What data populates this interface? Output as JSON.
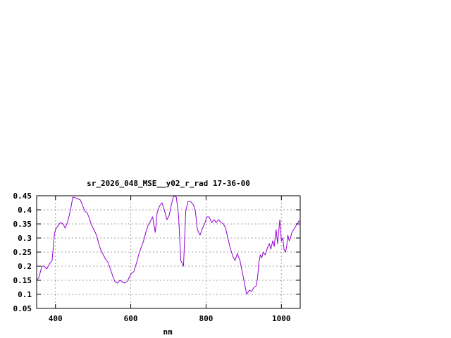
{
  "chart_data": {
    "type": "line",
    "title": "sr_2026_048_MSE__y02_r_rad 17-36-00",
    "xlabel": "nm",
    "ylabel": "",
    "xlim": [
      350,
      1050
    ],
    "ylim": [
      0.05,
      0.45
    ],
    "x_ticks": [
      400,
      600,
      800,
      1000
    ],
    "x_tick_labels": [
      "400",
      "600",
      "800",
      "1000"
    ],
    "y_ticks": [
      0.05,
      0.1,
      0.15,
      0.2,
      0.25,
      0.3,
      0.35,
      0.4,
      0.45
    ],
    "y_tick_labels": [
      "0.05",
      "0.1",
      "0.15",
      "0.2",
      "0.25",
      "0.3",
      "0.35",
      "0.4",
      "0.45"
    ],
    "grid": true,
    "line_color": "#9400d3",
    "series": [
      {
        "x": [
          350,
          356,
          364,
          370,
          377,
          385,
          391,
          397,
          400,
          405,
          413,
          420,
          426,
          433,
          440,
          446,
          452,
          459,
          466,
          471,
          478,
          484,
          490,
          496,
          502,
          509,
          515,
          521,
          527,
          533,
          539,
          546,
          552,
          558,
          565,
          571,
          577,
          584,
          590,
          596,
          602,
          608,
          615,
          621,
          627,
          633,
          640,
          646,
          652,
          658,
          665,
          670,
          677,
          683,
          689,
          696,
          702,
          708,
          714,
          721,
          727,
          733,
          740,
          746,
          752,
          758,
          762,
          765,
          767,
          769,
          772,
          777,
          784,
          789,
          796,
          802,
          808,
          815,
          821,
          827,
          833,
          840,
          846,
          852,
          858,
          864,
          871,
          877,
          883,
          890,
          896,
          902,
          908,
          915,
          921,
          927,
          933,
          937,
          940,
          944,
          948,
          952,
          957,
          963,
          968,
          972,
          977,
          981,
          986,
          990,
          996,
          1000,
          1004,
          1007,
          1011,
          1014,
          1017,
          1021,
          1024,
          1028,
          1033,
          1037,
          1042,
          1046,
          1050
        ],
        "y": [
          0.15,
          0.16,
          0.2,
          0.2,
          0.19,
          0.21,
          0.22,
          0.31,
          0.33,
          0.34,
          0.355,
          0.35,
          0.335,
          0.36,
          0.4,
          0.445,
          0.443,
          0.44,
          0.435,
          0.42,
          0.395,
          0.39,
          0.37,
          0.345,
          0.33,
          0.31,
          0.28,
          0.255,
          0.24,
          0.225,
          0.215,
          0.19,
          0.165,
          0.145,
          0.14,
          0.15,
          0.145,
          0.14,
          0.145,
          0.16,
          0.175,
          0.18,
          0.21,
          0.24,
          0.265,
          0.285,
          0.32,
          0.345,
          0.36,
          0.375,
          0.32,
          0.39,
          0.415,
          0.425,
          0.4,
          0.365,
          0.38,
          0.42,
          0.45,
          0.445,
          0.38,
          0.22,
          0.2,
          0.395,
          0.43,
          0.43,
          0.425,
          0.42,
          0.415,
          0.41,
          0.39,
          0.33,
          0.31,
          0.33,
          0.35,
          0.375,
          0.375,
          0.355,
          0.365,
          0.355,
          0.365,
          0.355,
          0.35,
          0.335,
          0.3,
          0.265,
          0.235,
          0.22,
          0.245,
          0.22,
          0.18,
          0.14,
          0.1,
          0.115,
          0.11,
          0.125,
          0.13,
          0.16,
          0.21,
          0.24,
          0.23,
          0.25,
          0.24,
          0.265,
          0.28,
          0.26,
          0.29,
          0.27,
          0.33,
          0.28,
          0.365,
          0.29,
          0.3,
          0.26,
          0.25,
          0.27,
          0.31,
          0.29,
          0.3,
          0.32,
          0.33,
          0.34,
          0.35,
          0.36,
          0.36
        ]
      }
    ]
  }
}
